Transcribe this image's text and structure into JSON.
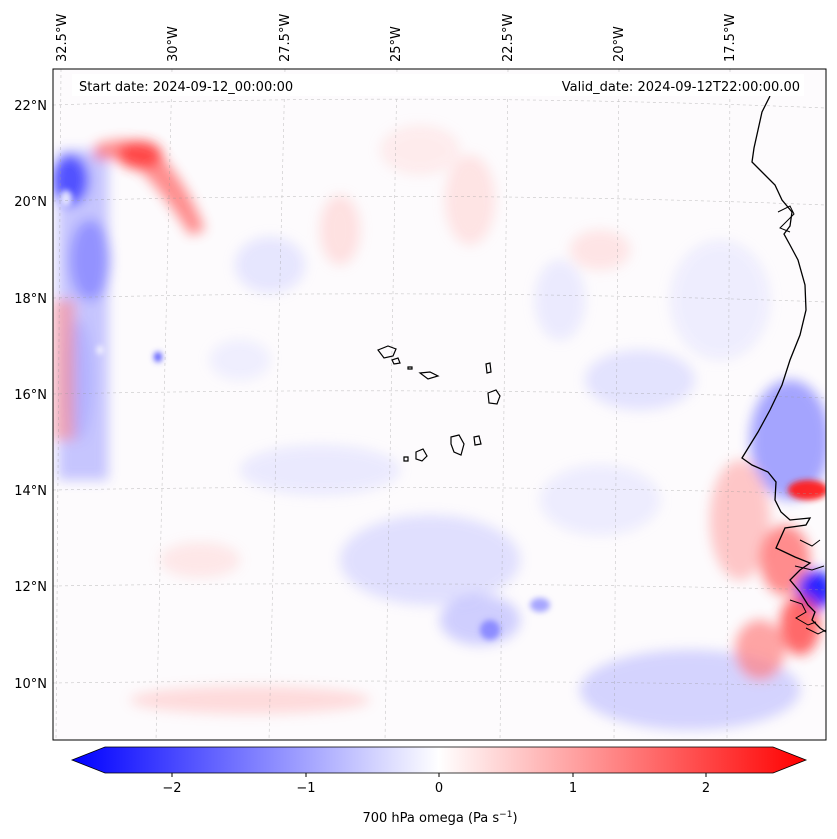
{
  "header": {
    "start_date": "Start date: 2024-09-12_00:00:00",
    "valid_date": "Valid_date: 2024-09-12T22:00:00.00"
  },
  "map": {
    "top_longitude_labels": [
      "32.5°W",
      "30°W",
      "27.5°W",
      "25°W",
      "22.5°W",
      "20°W",
      "17.5°W"
    ],
    "latitude_labels": [
      "22°N",
      "20°N",
      "18°N",
      "16°N",
      "14°N",
      "12°N",
      "10°N"
    ],
    "gridlines": "dashed",
    "colors": {
      "positive": "#ff0000",
      "negative": "#0000ff",
      "zero": "#ffffff",
      "coastline": "#000000"
    }
  },
  "colorbar": {
    "label_main": "700 hPa omega (Pa s",
    "label_sup": "−1",
    "label_close": ")",
    "ticks": [
      "−2",
      "−1",
      "0",
      "1",
      "2"
    ],
    "tick_values": [
      -2,
      -1,
      0,
      1,
      2
    ],
    "range": [
      -2.6,
      2.6
    ],
    "extend": "both",
    "colormap": "bwr"
  }
}
